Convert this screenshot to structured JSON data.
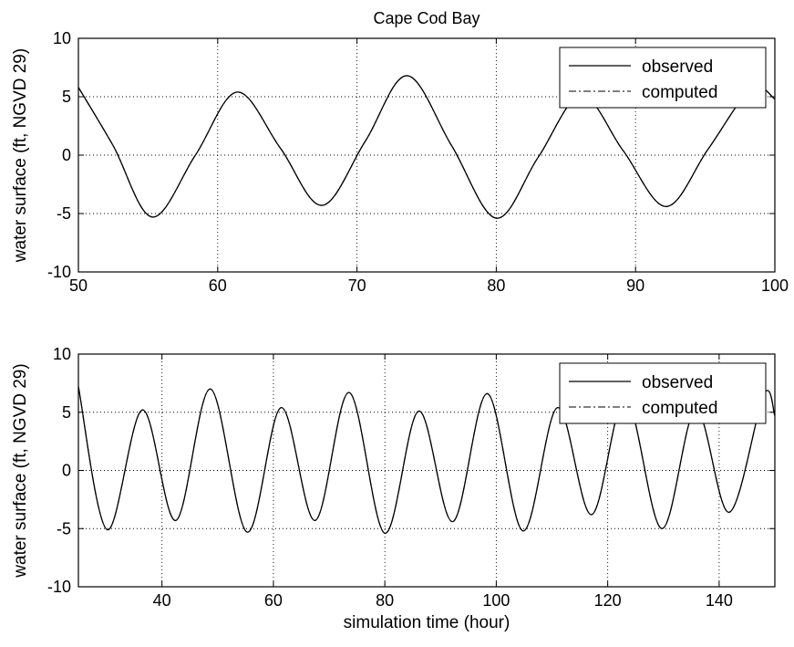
{
  "chart_data": [
    {
      "type": "line",
      "title": "Cape Cod Bay",
      "xlabel": "",
      "ylabel": "water surface (ft, NGVD 29)",
      "xlim": [
        50,
        100
      ],
      "ylim": [
        -10,
        10
      ],
      "xticks": [
        50,
        60,
        70,
        80,
        90,
        100
      ],
      "yticks": [
        -10,
        -5,
        0,
        5,
        10
      ],
      "grid": true,
      "legend_position": "top-right",
      "series": [
        {
          "name": "observed",
          "style": "solid",
          "x": [
            50,
            52.5,
            55.3,
            58.4,
            61.4,
            64.5,
            67.5,
            70.6,
            73.6,
            76.8,
            80.0,
            83.0,
            86.1,
            89.1,
            92.2,
            95.2,
            98.3,
            100
          ],
          "y": [
            5.8,
            0.8,
            -5.3,
            0.0,
            5.4,
            0.6,
            -4.3,
            1.2,
            6.8,
            0.8,
            -5.4,
            -0.2,
            5.1,
            0.4,
            -4.4,
            0.5,
            5.7,
            4.8
          ]
        },
        {
          "name": "computed",
          "style": "dash-dot",
          "x": [
            50,
            52.5,
            55.3,
            58.4,
            61.4,
            64.5,
            67.5,
            70.6,
            73.6,
            76.8,
            80.0,
            83.0,
            86.1,
            89.1,
            92.2,
            95.2,
            98.3,
            100
          ],
          "y": [
            5.8,
            0.8,
            -5.3,
            0.0,
            5.4,
            0.6,
            -4.3,
            1.2,
            6.8,
            0.8,
            -5.4,
            -0.2,
            5.1,
            0.4,
            -4.4,
            0.5,
            5.7,
            4.8
          ]
        }
      ]
    },
    {
      "type": "line",
      "title": "",
      "xlabel": "simulation time (hour)",
      "ylabel": "water surface (ft, NGVD 29)",
      "xlim": [
        25,
        150
      ],
      "ylim": [
        -10,
        10
      ],
      "xticks": [
        40,
        60,
        80,
        100,
        120,
        140
      ],
      "yticks": [
        -10,
        -5,
        0,
        5,
        10
      ],
      "grid": true,
      "legend_position": "top-right",
      "series": [
        {
          "name": "observed",
          "style": "solid",
          "x": [
            25,
            30.2,
            36.5,
            42.5,
            48.7,
            55.3,
            61.4,
            67.5,
            73.6,
            80.0,
            86.1,
            92.2,
            98.4,
            104.8,
            111.0,
            117.1,
            123.2,
            129.7,
            135.8,
            141.8,
            148.0,
            150
          ],
          "y": [
            7.2,
            -5.1,
            5.2,
            -4.3,
            7.0,
            -5.3,
            5.4,
            -4.3,
            6.7,
            -5.4,
            5.1,
            -4.4,
            6.6,
            -5.2,
            5.4,
            -3.8,
            6.2,
            -5.0,
            5.2,
            -3.6,
            6.5,
            4.7
          ]
        },
        {
          "name": "computed",
          "style": "dash-dot",
          "x": [
            25,
            30.2,
            36.5,
            42.5,
            48.7,
            55.3,
            61.4,
            67.5,
            73.6,
            80.0,
            86.1,
            92.2,
            98.4,
            104.8,
            111.0,
            117.1,
            123.2,
            129.7,
            135.8,
            141.8,
            148.0,
            150
          ],
          "y": [
            7.2,
            -5.1,
            5.2,
            -4.3,
            7.0,
            -5.3,
            5.4,
            -4.3,
            6.7,
            -5.4,
            5.1,
            -4.4,
            6.6,
            -5.2,
            5.4,
            -3.8,
            6.2,
            -5.0,
            5.2,
            -3.6,
            6.5,
            4.7
          ]
        }
      ]
    }
  ]
}
